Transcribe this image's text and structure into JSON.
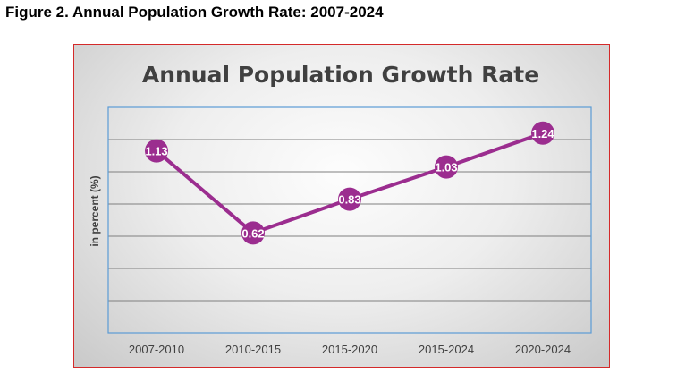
{
  "figure_caption": "Figure 2. Annual Population Growth Rate: 2007-2024",
  "colors": {
    "line": "#9b2d8f",
    "marker": "#9b2d8f",
    "plot_border": "#5b9bd5",
    "frame_border": "#d42a2a",
    "grid": "#7f7f7f"
  },
  "chart_data": {
    "type": "line",
    "title": "Annual Population Growth Rate",
    "ylabel": "in percent (%)",
    "xlabel": "",
    "categories": [
      "2007-2010",
      "2010-2015",
      "2015-2020",
      "2015-2024",
      "2020-2024"
    ],
    "series": [
      {
        "values": [
          1.13,
          0.62,
          0.83,
          1.03,
          1.24
        ]
      }
    ],
    "data_labels": [
      "1.13",
      "0.62",
      "0.83",
      "1.03",
      "1.24"
    ],
    "ylim": [
      0,
      1.4
    ],
    "grid": true,
    "legend": "none"
  }
}
